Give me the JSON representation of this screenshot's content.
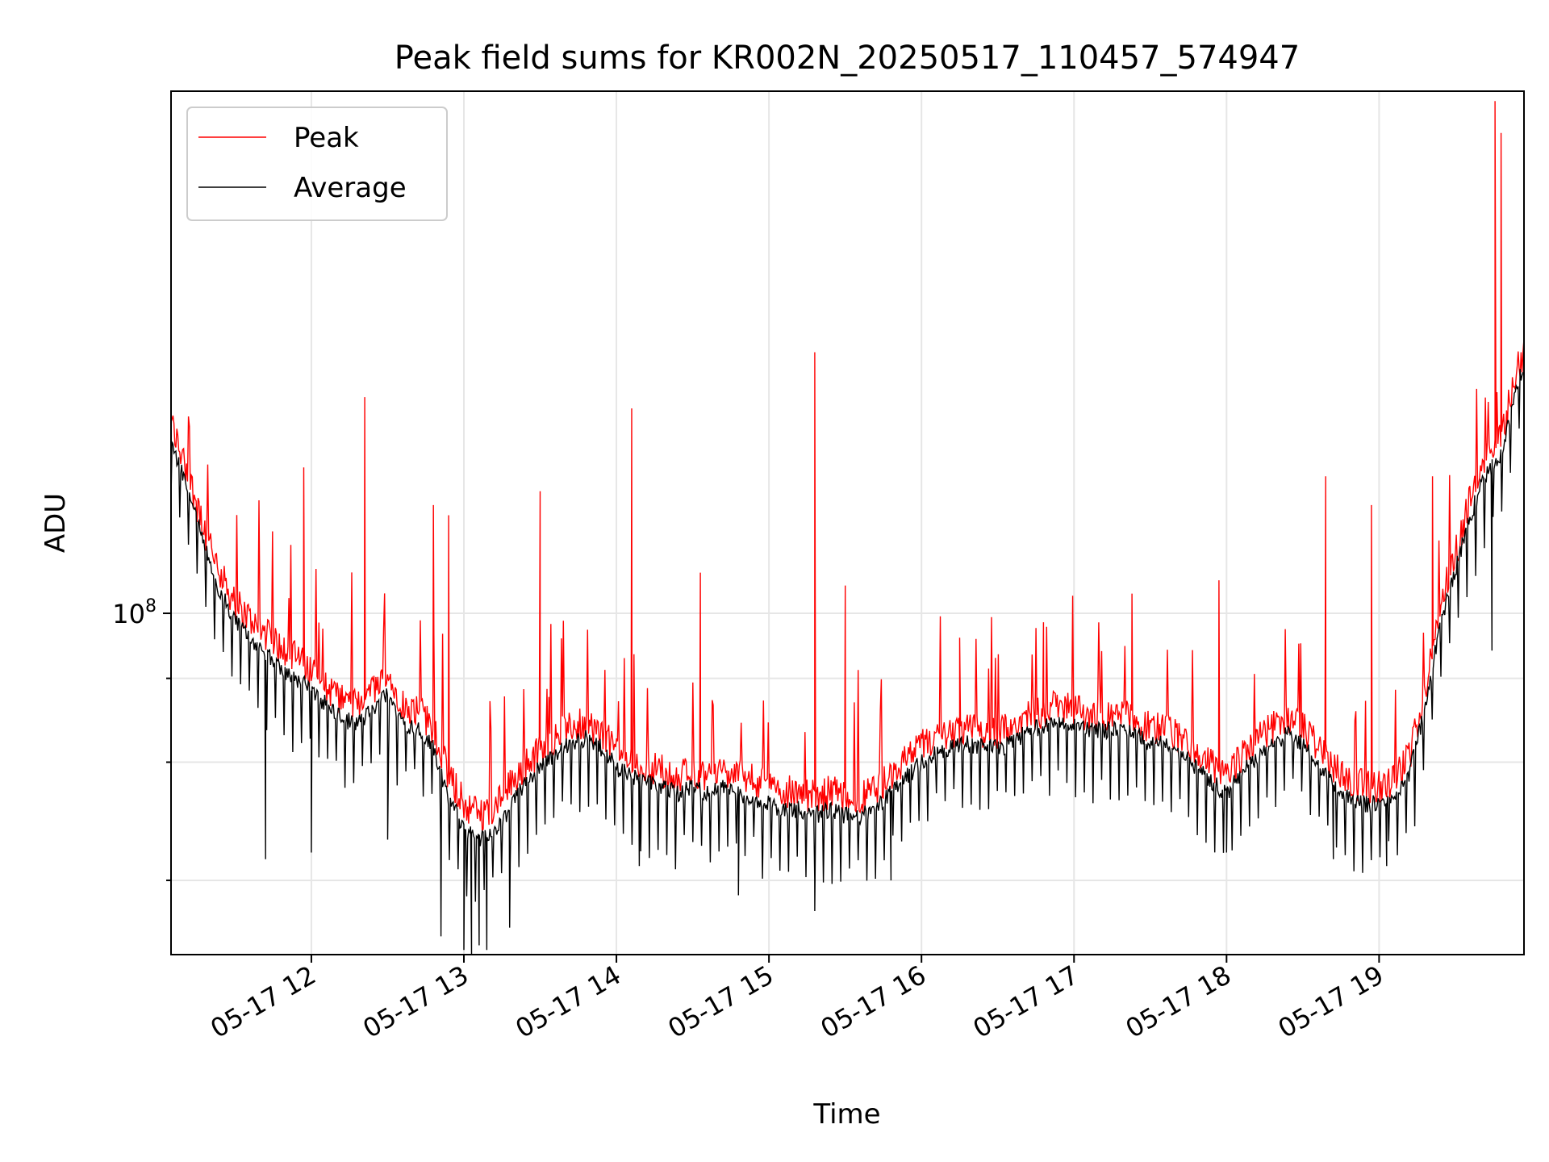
{
  "chart_data": {
    "type": "line",
    "title": "Peak field sums for KR002N_20250517_110457_574947",
    "xlabel": "Time",
    "ylabel": "ADU",
    "yscale": "log",
    "ylim": [
      31000000,
      600000000
    ],
    "y_tick_labels": [
      {
        "base": "10",
        "exp": "8"
      }
    ],
    "x_tick_labels": [
      "05-17 12",
      "05-17 13",
      "05-17 14",
      "05-17 15",
      "05-17 16",
      "05-17 17",
      "05-17 18",
      "05-17 19"
    ],
    "x_range_hours": [
      11.08,
      19.95
    ],
    "grid": true,
    "legend_position": "top-left",
    "series": [
      {
        "name": "Peak",
        "color": "#ff0000",
        "points": [
          [
            11.08,
            188000000
          ],
          [
            11.2,
            155000000
          ],
          [
            11.3,
            130000000
          ],
          [
            11.4,
            112000000
          ],
          [
            11.5,
            101000000
          ],
          [
            11.6,
            96000000
          ],
          [
            11.7,
            91000000
          ],
          [
            11.8,
            87000000
          ],
          [
            11.9,
            84000000
          ],
          [
            12.0,
            80000000
          ],
          [
            12.1,
            76000000
          ],
          [
            12.2,
            73000000
          ],
          [
            12.3,
            71000000
          ],
          [
            12.4,
            75000000
          ],
          [
            12.5,
            79000000
          ],
          [
            12.6,
            72000000
          ],
          [
            12.7,
            70000000
          ],
          [
            12.8,
            66000000
          ],
          [
            12.9,
            56000000
          ],
          [
            13.0,
            51000000
          ],
          [
            13.1,
            49000000
          ],
          [
            13.2,
            50000000
          ],
          [
            13.3,
            54000000
          ],
          [
            13.4,
            58000000
          ],
          [
            13.5,
            61000000
          ],
          [
            13.6,
            64000000
          ],
          [
            13.7,
            66000000
          ],
          [
            13.8,
            67000000
          ],
          [
            13.9,
            65000000
          ],
          [
            14.0,
            61000000
          ],
          [
            14.1,
            59000000
          ],
          [
            14.2,
            58000000
          ],
          [
            14.3,
            57000000
          ],
          [
            14.4,
            56000000
          ],
          [
            14.5,
            57000000
          ],
          [
            14.6,
            56000000
          ],
          [
            14.7,
            57000000
          ],
          [
            14.8,
            56000000
          ],
          [
            14.9,
            55000000
          ],
          [
            15.0,
            54000000
          ],
          [
            15.1,
            53000000
          ],
          [
            15.2,
            53000000
          ],
          [
            15.3,
            52000000
          ],
          [
            15.4,
            53000000
          ],
          [
            15.5,
            52000000
          ],
          [
            15.6,
            52000000
          ],
          [
            15.7,
            53000000
          ],
          [
            15.8,
            56000000
          ],
          [
            15.9,
            59000000
          ],
          [
            16.0,
            62000000
          ],
          [
            16.1,
            64000000
          ],
          [
            16.2,
            65000000
          ],
          [
            16.3,
            66000000
          ],
          [
            16.4,
            65000000
          ],
          [
            16.5,
            65000000
          ],
          [
            16.6,
            66000000
          ],
          [
            16.7,
            69000000
          ],
          [
            16.8,
            70000000
          ],
          [
            16.9,
            71000000
          ],
          [
            17.0,
            70000000
          ],
          [
            17.1,
            69000000
          ],
          [
            17.2,
            69000000
          ],
          [
            17.3,
            69000000
          ],
          [
            17.4,
            68000000
          ],
          [
            17.5,
            66000000
          ],
          [
            17.6,
            66000000
          ],
          [
            17.7,
            64000000
          ],
          [
            17.8,
            61000000
          ],
          [
            17.9,
            58000000
          ],
          [
            18.0,
            56000000
          ],
          [
            18.1,
            60000000
          ],
          [
            18.2,
            63000000
          ],
          [
            18.3,
            66000000
          ],
          [
            18.4,
            68000000
          ],
          [
            18.5,
            66000000
          ],
          [
            18.6,
            62000000
          ],
          [
            18.7,
            58000000
          ],
          [
            18.8,
            55000000
          ],
          [
            18.9,
            54000000
          ],
          [
            19.0,
            54000000
          ],
          [
            19.1,
            55000000
          ],
          [
            19.2,
            60000000
          ],
          [
            19.3,
            75000000
          ],
          [
            19.4,
            100000000
          ],
          [
            19.5,
            120000000
          ],
          [
            19.6,
            145000000
          ],
          [
            19.7,
            168000000
          ],
          [
            19.75,
            172000000
          ],
          [
            19.8,
            178000000
          ],
          [
            19.9,
            225000000
          ],
          [
            19.95,
            240000000
          ]
        ],
        "spikes": [
          [
            11.95,
            165000000
          ],
          [
            12.35,
            210000000
          ],
          [
            12.8,
            145000000
          ],
          [
            12.9,
            140000000
          ],
          [
            13.5,
            152000000
          ],
          [
            14.1,
            202000000
          ],
          [
            14.55,
            115000000
          ],
          [
            15.3,
            245000000
          ],
          [
            15.5,
            110000000
          ],
          [
            16.25,
            92000000
          ],
          [
            16.8,
            97000000
          ],
          [
            17.38,
            107000000
          ],
          [
            17.95,
            112000000
          ],
          [
            18.65,
            160000000
          ],
          [
            18.95,
            145000000
          ],
          [
            19.35,
            160000000
          ],
          [
            19.76,
            580000000
          ],
          [
            19.8,
            520000000
          ]
        ]
      },
      {
        "name": "Average",
        "color": "#000000",
        "points": [
          [
            11.08,
            180000000
          ],
          [
            11.2,
            150000000
          ],
          [
            11.3,
            125000000
          ],
          [
            11.4,
            108000000
          ],
          [
            11.5,
            97000000
          ],
          [
            11.6,
            92000000
          ],
          [
            11.7,
            87000000
          ],
          [
            11.8,
            83000000
          ],
          [
            11.9,
            80000000
          ],
          [
            12.0,
            77000000
          ],
          [
            12.1,
            73000000
          ],
          [
            12.2,
            70000000
          ],
          [
            12.3,
            68000000
          ],
          [
            12.4,
            72000000
          ],
          [
            12.5,
            76000000
          ],
          [
            12.6,
            69000000
          ],
          [
            12.7,
            67000000
          ],
          [
            12.8,
            63000000
          ],
          [
            12.9,
            53000000
          ],
          [
            13.0,
            48000000
          ],
          [
            13.1,
            46000000
          ],
          [
            13.2,
            47000000
          ],
          [
            13.3,
            51000000
          ],
          [
            13.4,
            56000000
          ],
          [
            13.5,
            59000000
          ],
          [
            13.6,
            62000000
          ],
          [
            13.7,
            64000000
          ],
          [
            13.8,
            65000000
          ],
          [
            13.9,
            63000000
          ],
          [
            14.0,
            59000000
          ],
          [
            14.1,
            57000000
          ],
          [
            14.2,
            56000000
          ],
          [
            14.3,
            55000000
          ],
          [
            14.4,
            54000000
          ],
          [
            14.5,
            55000000
          ],
          [
            14.6,
            54000000
          ],
          [
            14.7,
            55000000
          ],
          [
            14.8,
            54000000
          ],
          [
            14.9,
            53000000
          ],
          [
            15.0,
            52000000
          ],
          [
            15.1,
            51000000
          ],
          [
            15.2,
            51000000
          ],
          [
            15.3,
            50000000
          ],
          [
            15.4,
            51000000
          ],
          [
            15.5,
            50000000
          ],
          [
            15.6,
            50000000
          ],
          [
            15.7,
            51000000
          ],
          [
            15.8,
            54000000
          ],
          [
            15.9,
            57000000
          ],
          [
            16.0,
            60000000
          ],
          [
            16.1,
            62000000
          ],
          [
            16.2,
            63000000
          ],
          [
            16.3,
            64000000
          ],
          [
            16.4,
            63000000
          ],
          [
            16.5,
            63000000
          ],
          [
            16.6,
            64000000
          ],
          [
            16.7,
            67000000
          ],
          [
            16.8,
            68000000
          ],
          [
            16.9,
            69000000
          ],
          [
            17.0,
            68000000
          ],
          [
            17.1,
            67000000
          ],
          [
            17.2,
            67000000
          ],
          [
            17.3,
            67000000
          ],
          [
            17.4,
            66000000
          ],
          [
            17.5,
            64000000
          ],
          [
            17.6,
            64000000
          ],
          [
            17.7,
            62000000
          ],
          [
            17.8,
            59000000
          ],
          [
            17.9,
            56000000
          ],
          [
            18.0,
            54000000
          ],
          [
            18.1,
            58000000
          ],
          [
            18.2,
            61000000
          ],
          [
            18.3,
            64000000
          ],
          [
            18.4,
            66000000
          ],
          [
            18.5,
            64000000
          ],
          [
            18.6,
            60000000
          ],
          [
            18.7,
            56000000
          ],
          [
            18.8,
            53000000
          ],
          [
            18.9,
            52000000
          ],
          [
            19.0,
            52000000
          ],
          [
            19.1,
            53000000
          ],
          [
            19.2,
            58000000
          ],
          [
            19.3,
            72000000
          ],
          [
            19.4,
            96000000
          ],
          [
            19.5,
            116000000
          ],
          [
            19.6,
            140000000
          ],
          [
            19.7,
            162000000
          ],
          [
            19.75,
            166000000
          ],
          [
            19.8,
            172000000
          ],
          [
            19.9,
            218000000
          ],
          [
            19.95,
            234000000
          ]
        ],
        "dips": [
          [
            11.7,
            43000000
          ],
          [
            12.0,
            44000000
          ],
          [
            12.5,
            46000000
          ],
          [
            12.85,
            33000000
          ],
          [
            13.0,
            31500000
          ],
          [
            13.05,
            31000000
          ],
          [
            13.1,
            32000000
          ],
          [
            13.15,
            31500000
          ],
          [
            13.3,
            34000000
          ],
          [
            14.15,
            42000000
          ],
          [
            14.8,
            38000000
          ],
          [
            15.3,
            36000000
          ],
          [
            15.8,
            40000000
          ],
          [
            18.0,
            44000000
          ],
          [
            18.7,
            43000000
          ],
          [
            19.05,
            42000000
          ],
          [
            19.74,
            88000000
          ]
        ]
      }
    ]
  }
}
